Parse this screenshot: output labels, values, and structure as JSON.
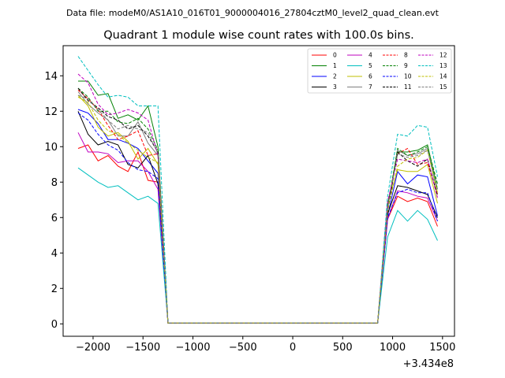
{
  "header": {
    "data_file_text": "Data file: modeM0/AS1A10_016T01_9000004016_27804cztM0_level2_quad_clean.evt"
  },
  "chart_data": {
    "type": "line",
    "title": "Quadrant 1 module wise count rates with 100.0s bins.",
    "xlabel": "",
    "ylabel": "",
    "x_offset_label": "+3.434e8",
    "xlim": [
      -2300,
      1620
    ],
    "ylim": [
      -0.7,
      15.7
    ],
    "xticks": [
      -2000,
      -1500,
      -1000,
      -500,
      0,
      500,
      1000,
      1500
    ],
    "xtick_labels": [
      "−2000",
      "−1500",
      "−1000",
      "−500",
      "0",
      "500",
      "1000",
      "1500"
    ],
    "yticks": [
      0,
      2,
      4,
      6,
      8,
      10,
      12,
      14
    ],
    "ytick_labels": [
      "0",
      "2",
      "4",
      "6",
      "8",
      "10",
      "12",
      "14"
    ],
    "grid": false,
    "legend": {
      "placement": "top-right",
      "columns": 4
    },
    "x": [
      -2150,
      -2050,
      -1950,
      -1850,
      -1750,
      -1650,
      -1550,
      -1450,
      -1350,
      -1250,
      -1150,
      -1050,
      -950,
      -850,
      -750,
      -650,
      -550,
      -450,
      -350,
      -250,
      -150,
      -50,
      50,
      150,
      250,
      350,
      450,
      550,
      650,
      750,
      850,
      950,
      1050,
      1150,
      1250,
      1350,
      1450
    ],
    "series": [
      {
        "name": "0",
        "color": "#ff0000",
        "dash": "solid",
        "values": [
          9.9,
          10.1,
          9.2,
          9.5,
          8.9,
          8.6,
          9.7,
          8.1,
          8.0,
          0.05,
          0.05,
          0.05,
          0.05,
          0.05,
          0.05,
          0.05,
          0.05,
          0.05,
          0.05,
          0.05,
          0.05,
          0.05,
          0.05,
          0.05,
          0.05,
          0.05,
          0.05,
          0.05,
          0.05,
          0.05,
          0.05,
          5.9,
          7.2,
          6.9,
          7.1,
          6.9,
          5.5
        ]
      },
      {
        "name": "1",
        "color": "#008000",
        "dash": "solid",
        "values": [
          13.7,
          13.7,
          12.9,
          13.0,
          11.6,
          11.8,
          11.5,
          12.3,
          10.0,
          0.05,
          0.05,
          0.05,
          0.05,
          0.05,
          0.05,
          0.05,
          0.05,
          0.05,
          0.05,
          0.05,
          0.05,
          0.05,
          0.05,
          0.05,
          0.05,
          0.05,
          0.05,
          0.05,
          0.05,
          0.05,
          0.05,
          6.6,
          9.7,
          9.7,
          9.8,
          10.1,
          7.6
        ]
      },
      {
        "name": "2",
        "color": "#0000ff",
        "dash": "solid",
        "values": [
          12.1,
          11.9,
          11.3,
          10.4,
          10.4,
          10.2,
          9.9,
          9.2,
          8.5,
          0.05,
          0.05,
          0.05,
          0.05,
          0.05,
          0.05,
          0.05,
          0.05,
          0.05,
          0.05,
          0.05,
          0.05,
          0.05,
          0.05,
          0.05,
          0.05,
          0.05,
          0.05,
          0.05,
          0.05,
          0.05,
          0.05,
          6.1,
          8.6,
          7.9,
          8.4,
          8.3,
          6.1
        ]
      },
      {
        "name": "3",
        "color": "#000000",
        "dash": "solid",
        "values": [
          12.0,
          10.7,
          10.1,
          10.3,
          10.1,
          9.0,
          8.8,
          9.5,
          7.9,
          0.05,
          0.05,
          0.05,
          0.05,
          0.05,
          0.05,
          0.05,
          0.05,
          0.05,
          0.05,
          0.05,
          0.05,
          0.05,
          0.05,
          0.05,
          0.05,
          0.05,
          0.05,
          0.05,
          0.05,
          0.05,
          0.05,
          6.2,
          7.8,
          7.7,
          7.5,
          7.3,
          6.0
        ]
      },
      {
        "name": "4",
        "color": "#bf00bf",
        "dash": "solid",
        "values": [
          10.8,
          9.7,
          9.7,
          9.6,
          9.1,
          9.2,
          9.2,
          8.6,
          7.6,
          0.05,
          0.05,
          0.05,
          0.05,
          0.05,
          0.05,
          0.05,
          0.05,
          0.05,
          0.05,
          0.05,
          0.05,
          0.05,
          0.05,
          0.05,
          0.05,
          0.05,
          0.05,
          0.05,
          0.05,
          0.05,
          0.05,
          5.9,
          7.5,
          7.4,
          7.2,
          7.1,
          5.8
        ]
      },
      {
        "name": "5",
        "color": "#00bfbf",
        "dash": "solid",
        "values": [
          8.8,
          8.4,
          8.0,
          7.7,
          7.8,
          7.4,
          7.0,
          7.2,
          6.8,
          0.05,
          0.05,
          0.05,
          0.05,
          0.05,
          0.05,
          0.05,
          0.05,
          0.05,
          0.05,
          0.05,
          0.05,
          0.05,
          0.05,
          0.05,
          0.05,
          0.05,
          0.05,
          0.05,
          0.05,
          0.05,
          0.05,
          4.9,
          6.4,
          5.8,
          6.4,
          5.9,
          4.7
        ]
      },
      {
        "name": "6",
        "color": "#bfbf00",
        "dash": "solid",
        "values": [
          12.9,
          12.3,
          11.1,
          10.6,
          10.8,
          10.3,
          9.3,
          9.9,
          9.0,
          0.05,
          0.05,
          0.05,
          0.05,
          0.05,
          0.05,
          0.05,
          0.05,
          0.05,
          0.05,
          0.05,
          0.05,
          0.05,
          0.05,
          0.05,
          0.05,
          0.05,
          0.05,
          0.05,
          0.05,
          0.05,
          0.05,
          6.8,
          8.7,
          8.6,
          8.6,
          9.0,
          6.8
        ]
      },
      {
        "name": "7",
        "color": "#7f7f7f",
        "dash": "solid",
        "values": [
          13.1,
          12.4,
          11.9,
          11.5,
          10.6,
          10.6,
          11.4,
          10.2,
          9.5,
          0.05,
          0.05,
          0.05,
          0.05,
          0.05,
          0.05,
          0.05,
          0.05,
          0.05,
          0.05,
          0.05,
          0.05,
          0.05,
          0.05,
          0.05,
          0.05,
          0.05,
          0.05,
          0.05,
          0.05,
          0.05,
          0.05,
          6.5,
          9.8,
          9.5,
          9.6,
          9.9,
          7.3
        ]
      },
      {
        "name": "8",
        "color": "#ff0000",
        "dash": "dashed",
        "values": [
          13.2,
          12.7,
          12.1,
          11.2,
          10.4,
          10.6,
          10.9,
          9.5,
          9.6,
          0.05,
          0.05,
          0.05,
          0.05,
          0.05,
          0.05,
          0.05,
          0.05,
          0.05,
          0.05,
          0.05,
          0.05,
          0.05,
          0.05,
          0.05,
          0.05,
          0.05,
          0.05,
          0.05,
          0.05,
          0.05,
          0.05,
          6.7,
          9.6,
          9.9,
          9.0,
          9.1,
          7.3
        ]
      },
      {
        "name": "9",
        "color": "#008000",
        "dash": "dashed",
        "values": [
          13.3,
          12.8,
          12.0,
          12.0,
          11.4,
          11.3,
          11.6,
          11.0,
          9.8,
          0.05,
          0.05,
          0.05,
          0.05,
          0.05,
          0.05,
          0.05,
          0.05,
          0.05,
          0.05,
          0.05,
          0.05,
          0.05,
          0.05,
          0.05,
          0.05,
          0.05,
          0.05,
          0.05,
          0.05,
          0.05,
          0.05,
          6.6,
          9.9,
          9.5,
          9.7,
          10.0,
          7.9
        ]
      },
      {
        "name": "10",
        "color": "#0000ff",
        "dash": "dashed",
        "values": [
          11.9,
          11.5,
          10.7,
          10.1,
          9.8,
          9.1,
          8.7,
          8.6,
          8.2,
          0.05,
          0.05,
          0.05,
          0.05,
          0.05,
          0.05,
          0.05,
          0.05,
          0.05,
          0.05,
          0.05,
          0.05,
          0.05,
          0.05,
          0.05,
          0.05,
          0.05,
          0.05,
          0.05,
          0.05,
          0.05,
          0.05,
          6.0,
          7.4,
          7.6,
          7.4,
          7.4,
          5.8
        ]
      },
      {
        "name": "11",
        "color": "#000000",
        "dash": "dashed",
        "values": [
          13.3,
          12.6,
          12.2,
          11.7,
          11.5,
          11.0,
          11.2,
          10.6,
          9.7,
          0.05,
          0.05,
          0.05,
          0.05,
          0.05,
          0.05,
          0.05,
          0.05,
          0.05,
          0.05,
          0.05,
          0.05,
          0.05,
          0.05,
          0.05,
          0.05,
          0.05,
          0.05,
          0.05,
          0.05,
          0.05,
          0.05,
          6.3,
          9.7,
          9.2,
          8.9,
          9.3,
          7.2
        ]
      },
      {
        "name": "12",
        "color": "#bf00bf",
        "dash": "dashed",
        "values": [
          14.1,
          13.6,
          12.4,
          11.8,
          11.9,
          12.1,
          11.9,
          11.5,
          9.5,
          0.05,
          0.05,
          0.05,
          0.05,
          0.05,
          0.05,
          0.05,
          0.05,
          0.05,
          0.05,
          0.05,
          0.05,
          0.05,
          0.05,
          0.05,
          0.05,
          0.05,
          0.05,
          0.05,
          0.05,
          0.05,
          0.05,
          6.9,
          9.3,
          9.2,
          9.1,
          9.3,
          7.1
        ]
      },
      {
        "name": "13",
        "color": "#00bfbf",
        "dash": "dashed",
        "values": [
          15.1,
          14.3,
          13.5,
          12.8,
          12.9,
          12.8,
          12.3,
          12.3,
          12.3,
          0.05,
          0.05,
          0.05,
          0.05,
          0.05,
          0.05,
          0.05,
          0.05,
          0.05,
          0.05,
          0.05,
          0.05,
          0.05,
          0.05,
          0.05,
          0.05,
          0.05,
          0.05,
          0.05,
          0.05,
          0.05,
          0.05,
          7.2,
          10.7,
          10.6,
          11.2,
          11.1,
          8.3
        ]
      },
      {
        "name": "14",
        "color": "#bfbf00",
        "dash": "dashed",
        "values": [
          12.8,
          12.5,
          11.5,
          10.9,
          10.7,
          10.2,
          9.8,
          9.4,
          9.1,
          0.05,
          0.05,
          0.05,
          0.05,
          0.05,
          0.05,
          0.05,
          0.05,
          0.05,
          0.05,
          0.05,
          0.05,
          0.05,
          0.05,
          0.05,
          0.05,
          0.05,
          0.05,
          0.05,
          0.05,
          0.05,
          0.05,
          6.4,
          8.9,
          9.3,
          9.4,
          9.8,
          7.4
        ]
      },
      {
        "name": "15",
        "color": "#7f7f7f",
        "dash": "dashed",
        "values": [
          12.9,
          12.7,
          12.1,
          11.5,
          11.0,
          11.2,
          11.0,
          10.8,
          9.6,
          0.05,
          0.05,
          0.05,
          0.05,
          0.05,
          0.05,
          0.05,
          0.05,
          0.05,
          0.05,
          0.05,
          0.05,
          0.05,
          0.05,
          0.05,
          0.05,
          0.05,
          0.05,
          0.05,
          0.05,
          0.05,
          0.05,
          6.5,
          9.6,
          9.4,
          9.5,
          9.8,
          7.6
        ]
      }
    ]
  }
}
